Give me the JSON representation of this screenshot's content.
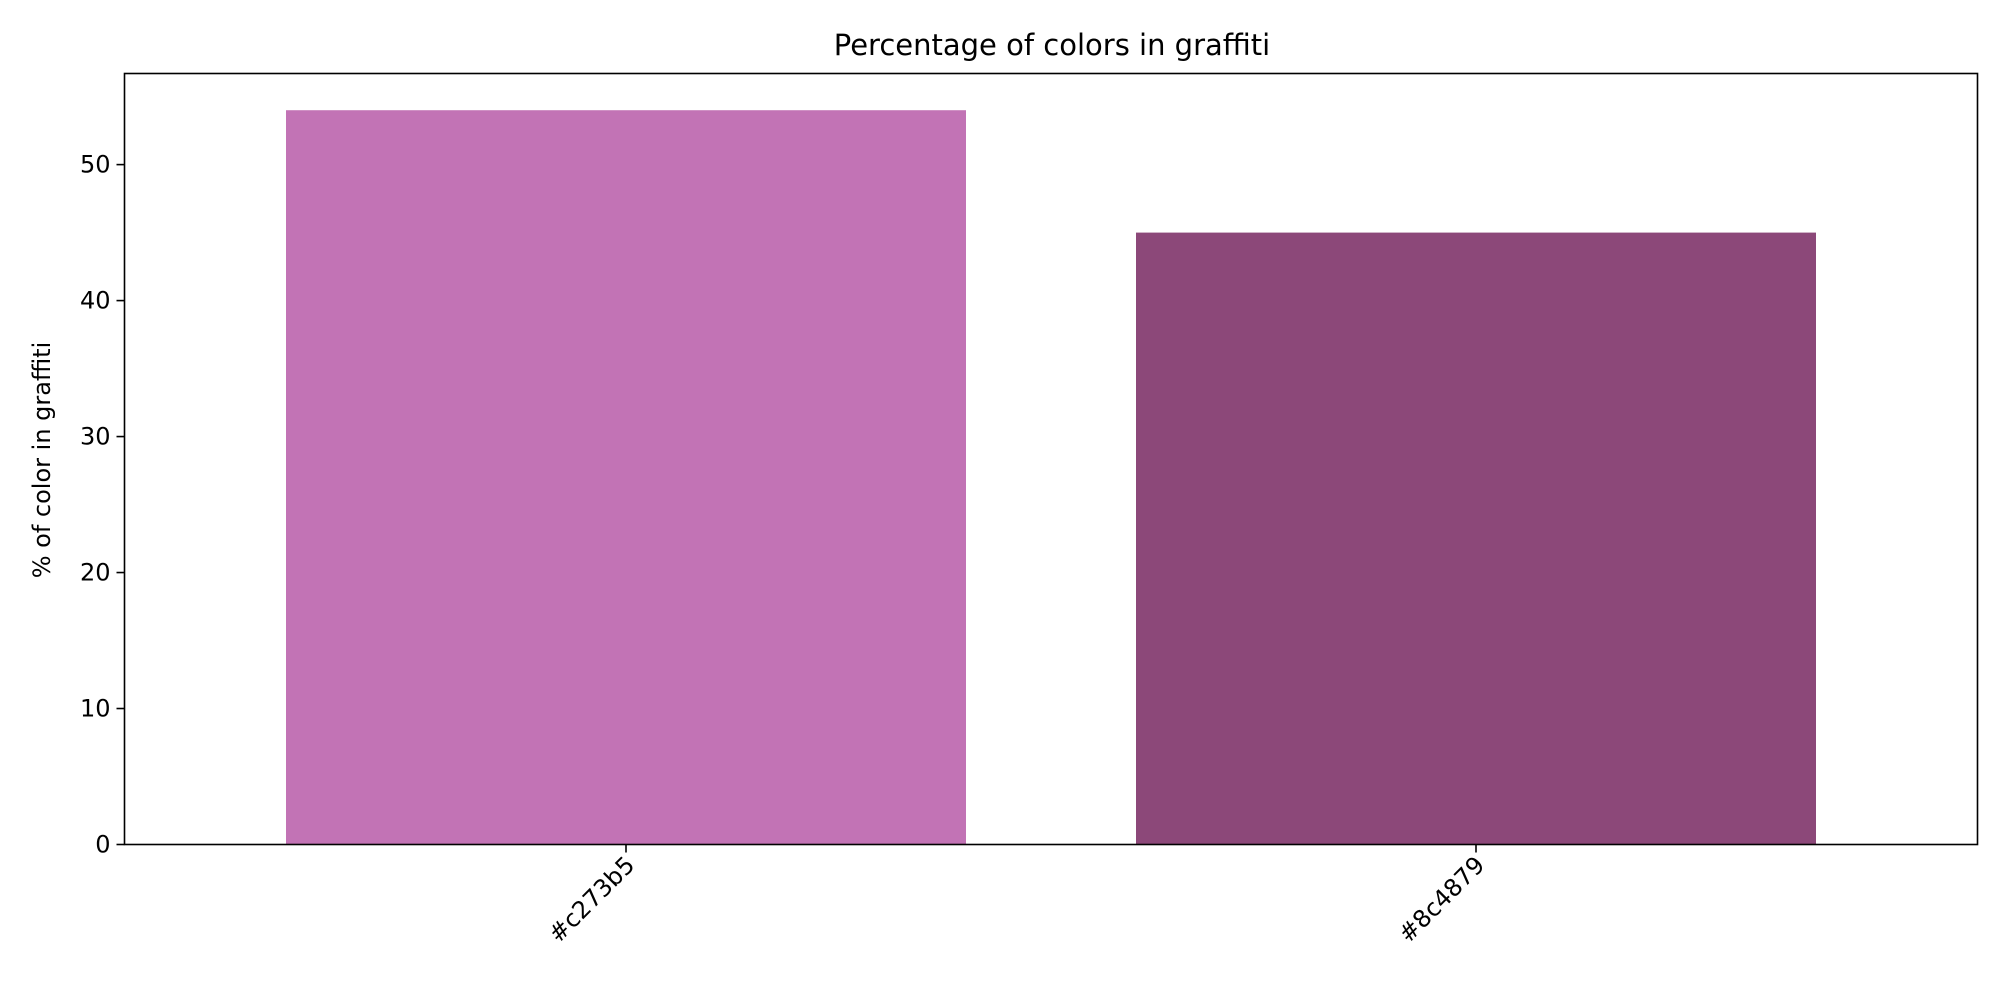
{
  "chart_data": {
    "type": "bar",
    "title": "Percentage of colors in graffiti",
    "xlabel": "",
    "ylabel": "% of color in graffiti",
    "categories": [
      "#c273b5",
      "#8c4879"
    ],
    "values": [
      54,
      45
    ],
    "bar_colors": [
      "#c273b5",
      "#8c4879"
    ],
    "ylim": [
      0,
      56.7
    ],
    "yticks": [
      0,
      10,
      20,
      30,
      40,
      50
    ],
    "grid": false,
    "legend": "none"
  }
}
